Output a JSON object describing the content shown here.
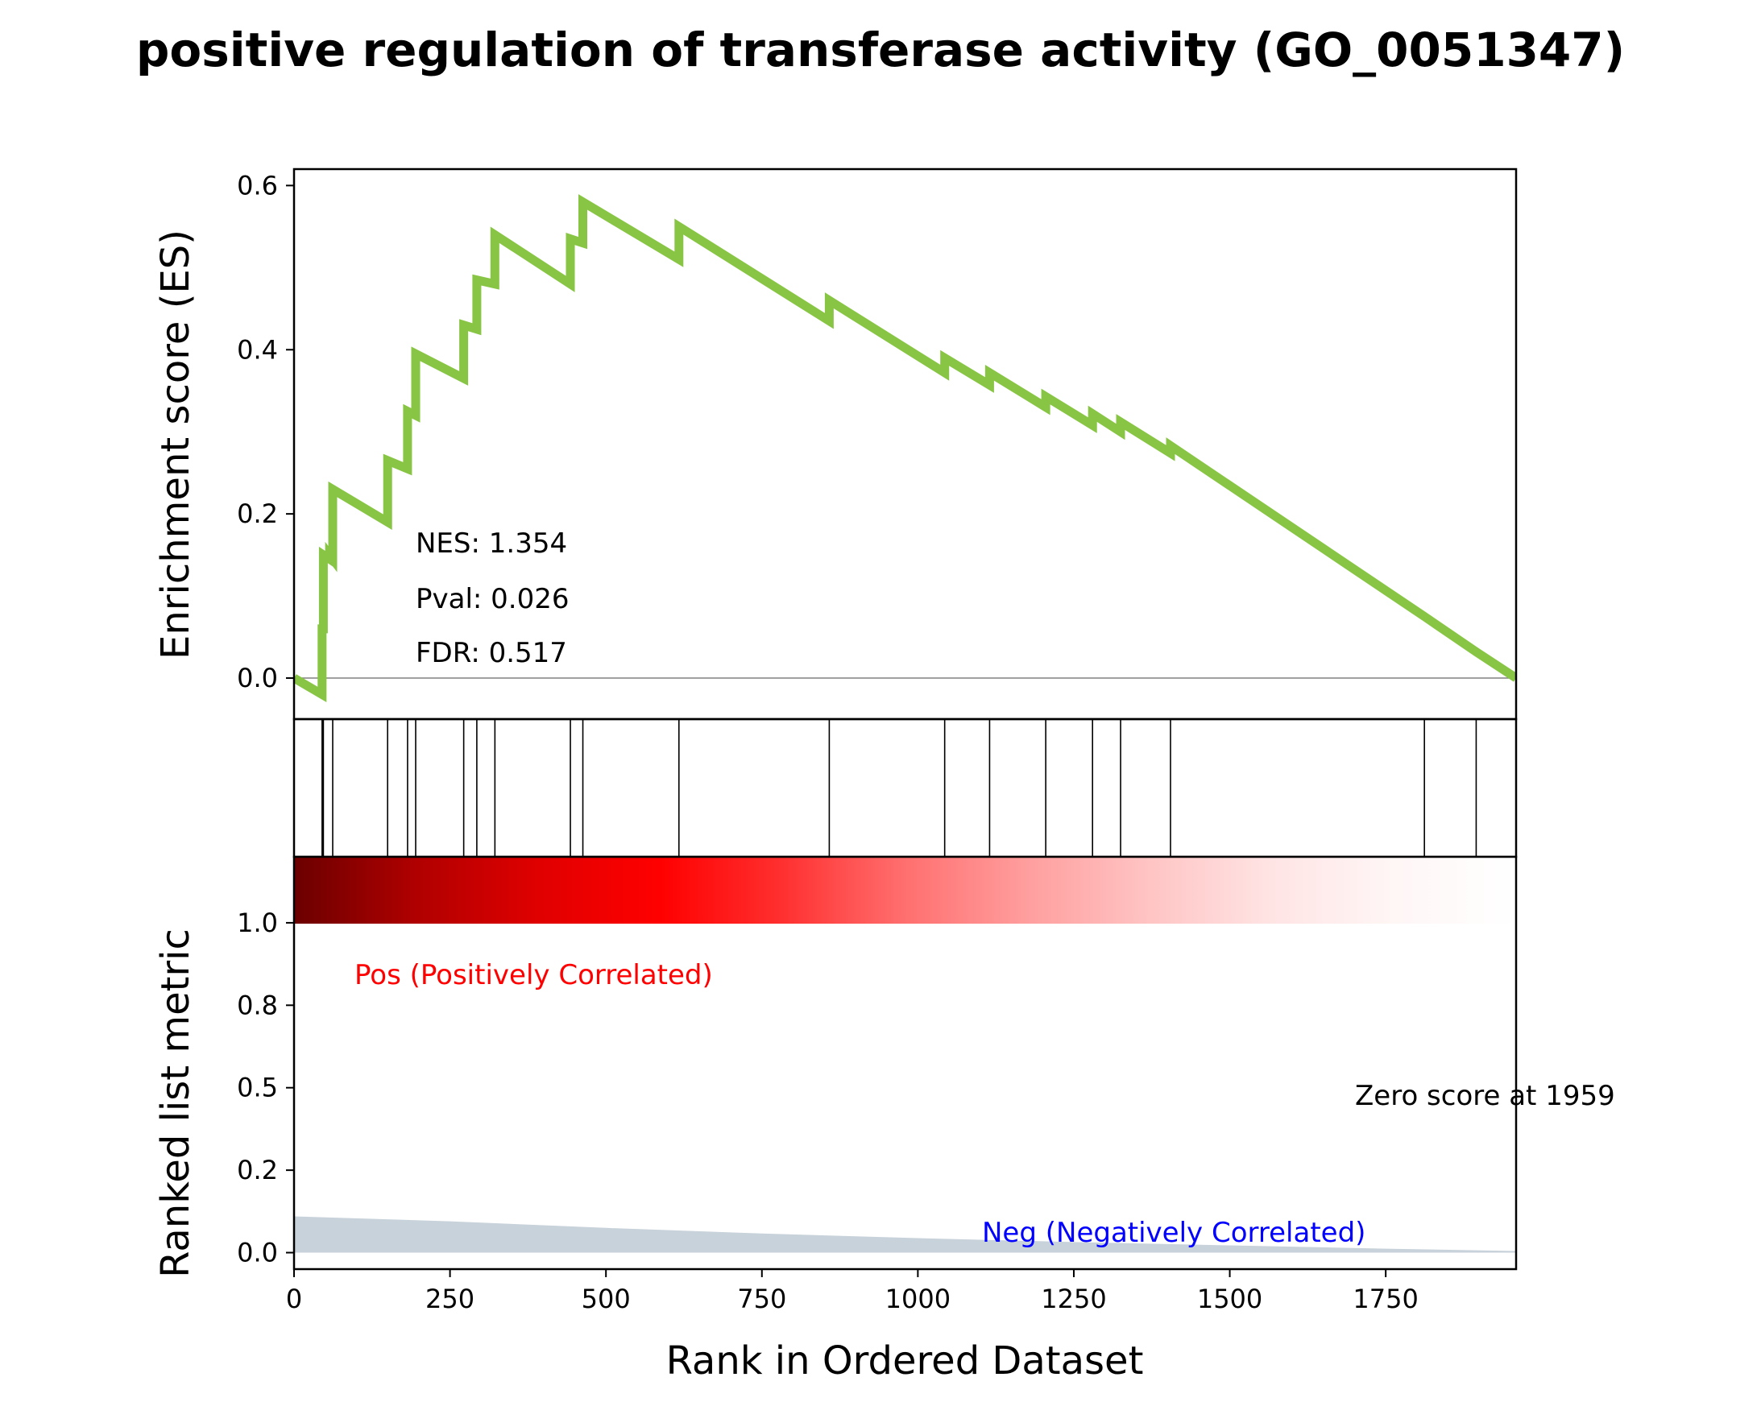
{
  "title": "positive regulation of transferase activity (GO_0051347)",
  "chart_data": {
    "type": "line",
    "title": "positive regulation of transferase activity (GO_0051347)",
    "xlabel": "Rank in Ordered Dataset",
    "xlim": [
      0,
      1959
    ],
    "x_ticks": [
      "0",
      "250",
      "500",
      "750",
      "1000",
      "1250",
      "1500",
      "1750"
    ],
    "x_tick_values": [
      0,
      250,
      500,
      750,
      1000,
      1250,
      1500,
      1750
    ],
    "es_panel": {
      "ylabel": "Enrichment score (ES)",
      "ylim": [
        -0.05,
        0.62
      ],
      "y_ticks": [
        "0.0",
        "0.2",
        "0.4",
        "0.6"
      ],
      "y_tick_values": [
        0.0,
        0.2,
        0.4,
        0.6
      ],
      "line_color": "#88c544",
      "zero_line_color": "#808080",
      "series": [
        {
          "x": [
            0,
            45,
            45,
            47,
            47,
            57,
            57,
            62,
            62,
            150,
            150,
            182,
            182,
            195,
            195,
            272,
            272,
            293,
            293,
            322,
            322,
            443,
            443,
            463,
            463,
            617,
            617,
            858,
            858,
            1043,
            1043,
            1115,
            1115,
            1205,
            1205,
            1280,
            1280,
            1325,
            1325,
            1405,
            1405,
            1812,
            1812,
            1895,
            1895,
            1959
          ],
          "y": [
            0.0,
            -0.02,
            0.06,
            0.06,
            0.15,
            0.145,
            0.15,
            0.145,
            0.23,
            0.19,
            0.265,
            0.255,
            0.325,
            0.32,
            0.395,
            0.365,
            0.43,
            0.425,
            0.485,
            0.48,
            0.54,
            0.48,
            0.535,
            0.53,
            0.58,
            0.51,
            0.55,
            0.435,
            0.46,
            0.372,
            0.39,
            0.357,
            0.372,
            0.33,
            0.343,
            0.308,
            0.322,
            0.3,
            0.312,
            0.274,
            0.283,
            0.075,
            0.075,
            0.032,
            0.032,
            0.0
          ]
        }
      ],
      "annotations": [
        {
          "text": "NES: 1.354"
        },
        {
          "text": "Pval: 0.026"
        },
        {
          "text": "FDR: 0.517"
        }
      ]
    },
    "hits_panel": {
      "hit_positions": [
        45,
        47,
        62,
        150,
        182,
        195,
        272,
        293,
        322,
        443,
        463,
        617,
        858,
        1043,
        1115,
        1205,
        1280,
        1325,
        1405,
        1812,
        1895
      ]
    },
    "rank_panel": {
      "ylabel": "Ranked list metric",
      "ylim": [
        -0.05,
        1.2
      ],
      "y_ticks": [
        "0.0",
        "0.2",
        "0.5",
        "0.8",
        "1.0"
      ],
      "y_tick_values": [
        0.0,
        0.25,
        0.5,
        0.75,
        1.0
      ],
      "gradient_colors": [
        "#6b0000",
        "#b00000",
        "#e00000",
        "#ff0000",
        "#ff3030",
        "#ff6f6f",
        "#ff9e9e",
        "#ffc4c4",
        "#ffe4e4",
        "#fff6f6",
        "#ffffff"
      ],
      "fill_color": "#c8d2da",
      "metric": {
        "x": [
          0,
          250,
          500,
          750,
          1000,
          1250,
          1500,
          1750,
          1959
        ],
        "y": [
          0.11,
          0.095,
          0.075,
          0.058,
          0.044,
          0.032,
          0.022,
          0.012,
          0.005
        ]
      },
      "pos_label": {
        "text": "Pos (Positively Correlated)",
        "color": "#ff0000"
      },
      "neg_label": {
        "text": "Neg (Negatively Correlated)",
        "color": "#0000ff"
      },
      "zero_label": {
        "text": "Zero score at 1959",
        "color": "#000000"
      }
    }
  }
}
